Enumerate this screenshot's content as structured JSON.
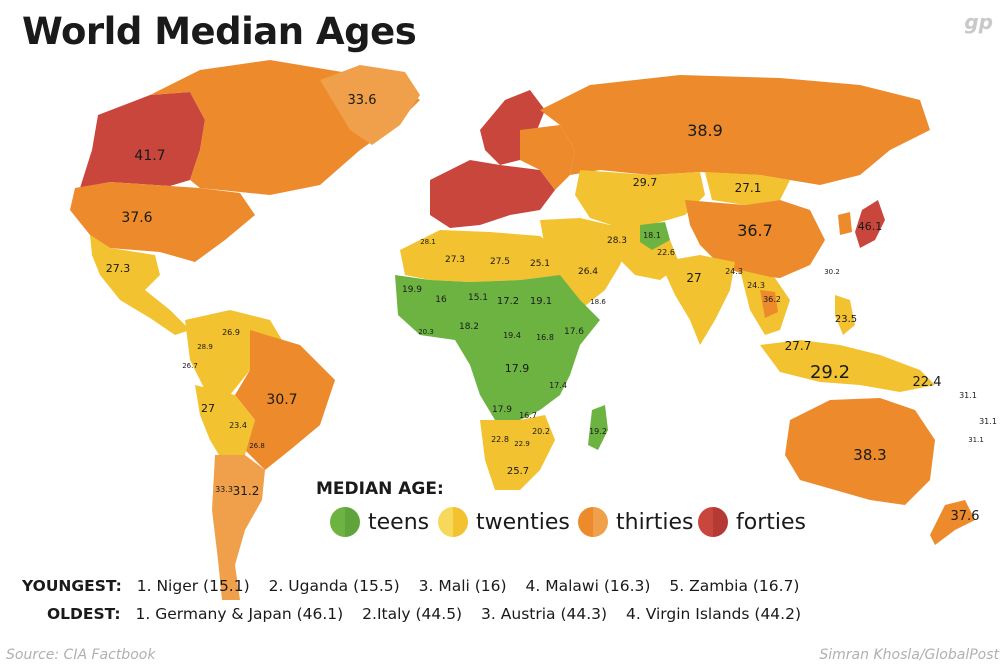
{
  "title": "World Median Ages",
  "logo": "gp",
  "colors": {
    "teens": "#6cb342",
    "twenties": "#f2c230",
    "thirties": "#ec8a2c",
    "forties": "#c9463c",
    "twenties_light": "#f7d85a",
    "thirties_light": "#f0a04a"
  },
  "legend": {
    "title": "MEDIAN AGE:",
    "items": [
      {
        "label": "teens",
        "color": "#6cb342",
        "color2": "#5ea43a"
      },
      {
        "label": "twenties",
        "color": "#f2c230",
        "color2": "#f7d85a"
      },
      {
        "label": "thirties",
        "color": "#ec8a2c",
        "color2": "#f0a04a"
      },
      {
        "label": "forties",
        "color": "#c9463c",
        "color2": "#b53a34"
      }
    ]
  },
  "youngest": {
    "head": "YOUNGEST:",
    "items": [
      "1. Niger (15.1)",
      "2. Uganda (15.5)",
      "3. Mali (16)",
      "4. Malawi (16.3)",
      "5. Zambia (16.7)"
    ]
  },
  "oldest": {
    "head": "OLDEST:",
    "items": [
      "1. Germany & Japan (46.1)",
      "2.Italy (44.5)",
      "3. Austria (44.3)",
      "4. Virgin Islands (44.2)"
    ]
  },
  "source": "Source: CIA Factbook",
  "credit": "Simran Khosla/GlobalPost",
  "labels": [
    {
      "v": "33.6"
    },
    {
      "v": "41.7"
    },
    {
      "v": "37.6"
    },
    {
      "v": "27.3"
    },
    {
      "v": "26.9"
    },
    {
      "v": "28.9"
    },
    {
      "v": "26.7"
    },
    {
      "v": "27"
    },
    {
      "v": "30.7"
    },
    {
      "v": "23.4"
    },
    {
      "v": "26.8"
    },
    {
      "v": "31.2"
    },
    {
      "v": "33.3"
    },
    {
      "v": "38.9"
    },
    {
      "v": "29.7"
    },
    {
      "v": "27.1"
    },
    {
      "v": "36.7"
    },
    {
      "v": "46.1"
    },
    {
      "v": "27.3"
    },
    {
      "v": "27.5"
    },
    {
      "v": "25.1"
    },
    {
      "v": "28.1"
    },
    {
      "v": "19.9"
    },
    {
      "v": "16"
    },
    {
      "v": "15.1"
    },
    {
      "v": "17.2"
    },
    {
      "v": "19.1"
    },
    {
      "v": "18.2"
    },
    {
      "v": "19.4"
    },
    {
      "v": "16.8"
    },
    {
      "v": "17.6"
    },
    {
      "v": "17.9"
    },
    {
      "v": "17.4"
    },
    {
      "v": "17.9"
    },
    {
      "v": "16.7"
    },
    {
      "v": "20.2"
    },
    {
      "v": "22.8"
    },
    {
      "v": "22.9"
    },
    {
      "v": "25.7"
    },
    {
      "v": "19.2"
    },
    {
      "v": "26.4"
    },
    {
      "v": "28.3"
    },
    {
      "v": "18.1"
    },
    {
      "v": "22.6"
    },
    {
      "v": "27"
    },
    {
      "v": "24.3"
    },
    {
      "v": "24.3"
    },
    {
      "v": "23.5"
    },
    {
      "v": "27.7"
    },
    {
      "v": "29.2"
    },
    {
      "v": "22.4"
    },
    {
      "v": "38.3"
    },
    {
      "v": "37.6"
    },
    {
      "v": "31.1"
    },
    {
      "v": "31.1"
    },
    {
      "v": "31.1"
    },
    {
      "v": "18.6"
    },
    {
      "v": "30.2"
    },
    {
      "v": "20.3"
    },
    {
      "v": "36.2"
    }
  ]
}
